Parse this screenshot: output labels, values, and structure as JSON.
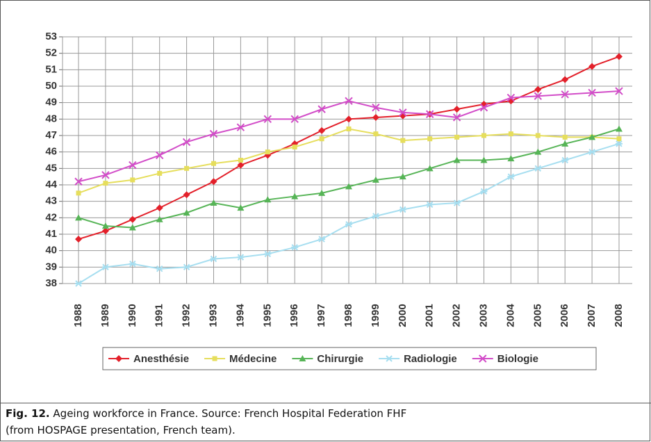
{
  "chart_data": {
    "type": "line",
    "categories": [
      "1988",
      "1989",
      "1990",
      "1991",
      "1992",
      "1993",
      "1994",
      "1995",
      "1996",
      "1997",
      "1998",
      "1999",
      "2000",
      "2001",
      "2002",
      "2003",
      "2004",
      "2005",
      "2006",
      "2007",
      "2008"
    ],
    "series": [
      {
        "name": "Anesthésie",
        "color": "#e3202a",
        "marker": "diamond",
        "values": [
          40.7,
          41.2,
          41.9,
          42.6,
          43.4,
          44.2,
          45.2,
          45.8,
          46.5,
          47.3,
          48.0,
          48.1,
          48.2,
          48.3,
          48.6,
          48.9,
          49.1,
          49.8,
          50.4,
          51.2,
          51.8
        ]
      },
      {
        "name": "Médecine",
        "color": "#e6de5c",
        "marker": "square",
        "values": [
          43.5,
          44.1,
          44.3,
          44.7,
          45.0,
          45.3,
          45.5,
          46.0,
          46.3,
          46.8,
          47.4,
          47.1,
          46.7,
          46.8,
          46.9,
          47.0,
          47.1,
          47.0,
          46.9,
          46.9,
          46.8
        ]
      },
      {
        "name": "Chirurgie",
        "color": "#56b456",
        "marker": "triangle",
        "values": [
          42.0,
          41.5,
          41.4,
          41.9,
          42.3,
          42.9,
          42.6,
          43.1,
          43.3,
          43.5,
          43.9,
          44.3,
          44.5,
          45.0,
          45.5,
          45.5,
          45.6,
          46.0,
          46.5,
          46.9,
          47.4
        ]
      },
      {
        "name": "Radiologie",
        "color": "#a6def0",
        "marker": "star",
        "values": [
          38.0,
          39.0,
          39.2,
          38.9,
          39.0,
          39.5,
          39.6,
          39.8,
          40.2,
          40.7,
          41.6,
          42.1,
          42.5,
          42.8,
          42.9,
          43.6,
          44.5,
          45.0,
          45.5,
          46.0,
          46.5
        ]
      },
      {
        "name": "Biologie",
        "color": "#d24cc8",
        "marker": "cross",
        "values": [
          44.2,
          44.6,
          45.2,
          45.8,
          46.6,
          47.1,
          47.5,
          48.0,
          48.0,
          48.6,
          49.1,
          48.7,
          48.4,
          48.3,
          48.1,
          48.7,
          49.3,
          49.4,
          49.5,
          49.6,
          49.7
        ]
      }
    ],
    "ylim": [
      38,
      53
    ],
    "yticks": [
      38,
      39,
      40,
      41,
      42,
      43,
      44,
      45,
      46,
      47,
      48,
      49,
      50,
      51,
      52,
      53
    ],
    "grid": true,
    "legend": "bottom"
  },
  "caption": {
    "label": "Fig. 12.",
    "lines": [
      "Ageing workforce in France. Source: French Hospital Federation FHF",
      "(from HOSPAGE presentation, French team)."
    ]
  }
}
